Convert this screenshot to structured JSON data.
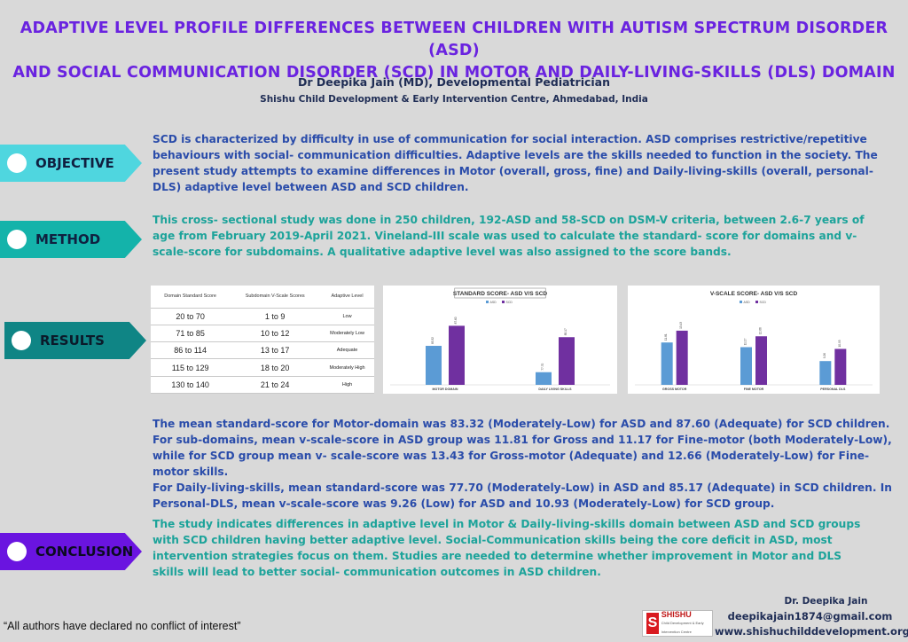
{
  "title_line1": "ADAPTIVE LEVEL PROFILE DIFFERENCES BETWEEN CHILDREN WITH AUTISM SPECTRUM DISORDER (ASD)",
  "title_line2": "AND SOCIAL COMMUNICATION DISORDER (SCD) IN MOTOR AND DAILY-LIVING-SKILLS (DLS) DOMAIN",
  "author": "Dr Deepika Jain (MD), Developmental Pediatrician",
  "organization": "Shishu Child Development & Early Intervention Centre, Ahmedabad, India",
  "sections": {
    "objective": {
      "label": "OBJECTIVE",
      "text": "SCD is characterized by difficulty in use of communication for social interaction. ASD comprises restrictive/repetitive behaviours with social- communication difficulties. Adaptive levels are the skills needed to function in the society. The present study attempts to examine differences in Motor (overall, gross, fine) and Daily-living-skills (overall, personal-DLS) adaptive level between ASD and SCD children."
    },
    "method": {
      "label": "METHOD",
      "text": "This cross- sectional study was done in 250 children, 192-ASD and 58-SCD on DSM-V criteria, between 2.6-7 years of age from February 2019-April 2021. Vineland-III scale was used to calculate the standard- score for domains and v-scale-score for subdomains. A qualitative  adaptive level was also assigned to the score bands."
    },
    "results": {
      "label": "RESULTS",
      "text_lines": [
        "The mean standard-score for Motor-domain was 83.32 (Moderately-Low) for ASD and 87.60 (Adequate) for SCD children. For sub-domains, mean v-scale-score in ASD group was 11.81 for Gross and 11.17 for Fine-motor (both Moderately-Low), while for SCD group mean v- scale-score was 13.43 for Gross-motor (Adequate) and 12.66 (Moderately-Low) for Fine-motor skills.",
        " For Daily-living-skills, mean standard-score was 77.70 (Moderately-Low) in ASD and 85.17 (Adequate) in SCD children. In Personal-DLS, mean v-scale-score was 9.26 (Low) for ASD and 10.93 (Moderately-Low) for SCD group."
      ]
    },
    "conclusion": {
      "label": "CONCLUSION",
      "text": "The study indicates differences in adaptive level in Motor & Daily-living-skills domain between ASD and SCD groups with SCD children having better adaptive level. Social-Communication skills being the core deficit in ASD, most intervention strategies focus on them. Studies are needed to determine whether improvement in Motor and DLS skills will lead to better social- communication outcomes in ASD children."
    }
  },
  "score_table": {
    "headers": [
      "Domain Standard Score",
      "Subdomain V-Scale Scores",
      "Adaptive Level"
    ],
    "rows": [
      [
        "20 to 70",
        "1 to 9",
        "Low"
      ],
      [
        "71 to 85",
        "10 to 12",
        "Moderately Low"
      ],
      [
        "86 to 114",
        "13 to 17",
        "Adequate"
      ],
      [
        "115 to 129",
        "18 to 20",
        "Moderately High"
      ],
      [
        "130 to 140",
        "21 to 24",
        "High"
      ]
    ]
  },
  "colors": {
    "asd": "#5b9bd5",
    "scd": "#7030a0"
  },
  "chart_data": [
    {
      "type": "bar",
      "title": "STANDARD SCORE- ASD V/S SCD",
      "categories": [
        "MOTOR DOMAIN",
        "DAILY LIVING SKILLS"
      ],
      "series": [
        {
          "name": "ASD",
          "values": [
            83.32,
            77.7
          ]
        },
        {
          "name": "SCD",
          "values": [
            87.6,
            85.17
          ]
        }
      ],
      "ylim": [
        75,
        89
      ],
      "legend": "top-center"
    },
    {
      "type": "bar",
      "title": "V-SCALE SCORE- ASD V/S SCD",
      "categories": [
        "GROSS MOTOR",
        "FINE MOTOR",
        "PERSONAL DLS"
      ],
      "series": [
        {
          "name": "ASD",
          "values": [
            11.81,
            11.17,
            9.26
          ]
        },
        {
          "name": "SCD",
          "values": [
            13.43,
            12.66,
            10.93
          ]
        }
      ],
      "ylim": [
        6,
        15
      ],
      "legend": "top-center"
    }
  ],
  "footer": {
    "disclaimer": "“All authors have declared no conflict of interest”",
    "logo_letter": "S",
    "logo_text": "SHISHU",
    "logo_sub": "Child Development & Early Intervention Centre",
    "contact_name": "Dr. Deepika Jain",
    "contact_email": "deepikajain1874@gmail.com",
    "contact_website": "www.shishuchilddevelopment.org"
  }
}
